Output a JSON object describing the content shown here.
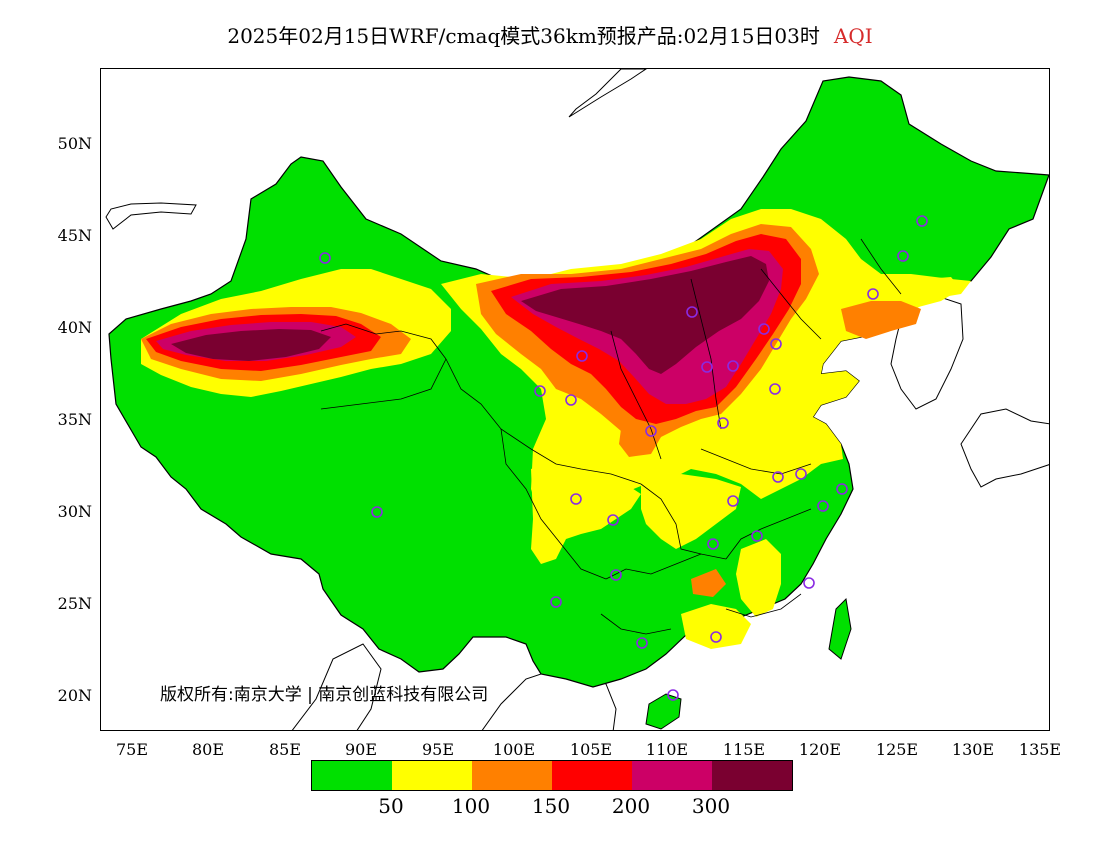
{
  "title": {
    "text": "2025年02月15日WRF/cmaq模式36km预报产品:02月15日03时",
    "variable": "AQI"
  },
  "axes": {
    "lat_labels": [
      "50N",
      "45N",
      "40N",
      "35N",
      "30N",
      "25N",
      "20N"
    ],
    "lon_labels": [
      "75E",
      "80E",
      "85E",
      "90E",
      "95E",
      "100E",
      "105E",
      "110E",
      "115E",
      "120E",
      "125E",
      "130E",
      "135E"
    ]
  },
  "copyright": "版权所有:南京大学 | 南京创蓝科技有限公司",
  "legend": {
    "colors": [
      "#00e000",
      "#ffff00",
      "#ff8000",
      "#ff0000",
      "#cc0066",
      "#7a0030"
    ],
    "labels": [
      "50",
      "100",
      "150",
      "200",
      "300"
    ]
  },
  "colors": {
    "sea": "#ffffff",
    "border": "#000000",
    "station_marker": "#8a2be2"
  }
}
